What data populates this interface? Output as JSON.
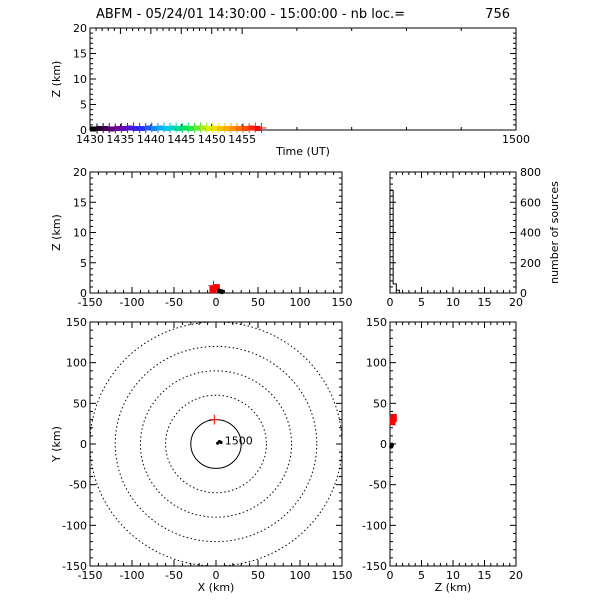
{
  "title": {
    "text": "ABFM - 05/24/01 14:30:00 - 15:00:00 - nb loc.=",
    "count": "756"
  },
  "colors": {
    "axis": "#000000",
    "background": "#ffffff",
    "recent": "#ff0000",
    "first": "#000000"
  },
  "chart_data": [
    {
      "id": "time-height",
      "type": "scatter",
      "xlabel": "Time (UT)",
      "ylabel": "Z (km)",
      "xlim": [
        1430,
        1500
      ],
      "ylim": [
        0,
        20
      ],
      "xticks": [
        "1430",
        "1435",
        "1440",
        "1445",
        "1450",
        "1455",
        "1500"
      ],
      "yticks": [
        "0",
        "5",
        "10",
        "15",
        "20"
      ],
      "colormap": "rainbow (black to red over time)",
      "points": [
        {
          "x": 1430.5,
          "y": 0.1
        },
        {
          "x": 1431.5,
          "y": 0.2
        },
        {
          "x": 1432.5,
          "y": 0.2
        },
        {
          "x": 1433.5,
          "y": 0.1
        },
        {
          "x": 1434.5,
          "y": 0.2
        },
        {
          "x": 1435.5,
          "y": 0.2
        },
        {
          "x": 1436.5,
          "y": 0.3
        },
        {
          "x": 1437.5,
          "y": 0.2
        },
        {
          "x": 1438.5,
          "y": 0.2
        },
        {
          "x": 1439.5,
          "y": 0.3
        },
        {
          "x": 1440.5,
          "y": 0.2
        },
        {
          "x": 1441.5,
          "y": 0.3
        },
        {
          "x": 1442.5,
          "y": 0.2
        },
        {
          "x": 1443.5,
          "y": 0.3
        },
        {
          "x": 1444.5,
          "y": 0.2
        },
        {
          "x": 1445.5,
          "y": 0.3
        },
        {
          "x": 1446.5,
          "y": 0.2
        },
        {
          "x": 1447.5,
          "y": 0.3
        },
        {
          "x": 1448.5,
          "y": 0.3
        },
        {
          "x": 1449.5,
          "y": 0.2
        },
        {
          "x": 1450.5,
          "y": 0.2
        },
        {
          "x": 1451.5,
          "y": 0.2
        },
        {
          "x": 1452.5,
          "y": 0.2
        },
        {
          "x": 1453.5,
          "y": 0.2
        },
        {
          "x": 1454.5,
          "y": 0.2
        },
        {
          "x": 1455.5,
          "y": 0.2
        },
        {
          "x": 1456.5,
          "y": 0.3
        },
        {
          "x": 1457.5,
          "y": 0.2
        }
      ]
    },
    {
      "id": "x-height",
      "type": "scatter",
      "xlabel": "",
      "ylabel": "Z (km)",
      "xlim": [
        -150,
        150
      ],
      "ylim": [
        0,
        20
      ],
      "xticks": [
        "-150",
        "-100",
        "-50",
        "0",
        "50",
        "100",
        "150"
      ],
      "yticks": [
        "0",
        "5",
        "10",
        "15",
        "20"
      ],
      "points": [
        {
          "x": -3,
          "y": 0.5,
          "c": "#ff0000"
        },
        {
          "x": 1,
          "y": 0.8,
          "c": "#ff0000"
        },
        {
          "x": 4,
          "y": 0.3,
          "c": "#000000"
        },
        {
          "x": 7,
          "y": 0.2,
          "c": "#000000"
        }
      ]
    },
    {
      "id": "height-histogram",
      "type": "bar",
      "xlabel": "",
      "ylabel": "number of sources",
      "ylabel_side": "right",
      "xlim": [
        0,
        20
      ],
      "ylim": [
        0,
        800
      ],
      "xticks": [
        "0",
        "5",
        "10",
        "15",
        "20"
      ],
      "yticks": [
        "0",
        "200",
        "400",
        "600",
        "800"
      ],
      "bin_width": 0.5,
      "values": [
        678,
        60,
        18,
        0,
        0,
        0,
        0,
        0,
        0,
        0,
        0,
        0,
        0,
        0,
        0,
        0,
        0,
        0,
        0,
        0,
        0,
        0,
        0,
        0,
        0,
        0,
        0,
        0,
        0,
        0,
        0,
        0,
        0,
        0,
        0,
        0,
        0,
        0,
        0,
        0
      ]
    },
    {
      "id": "plan-view",
      "type": "scatter",
      "xlabel": "X (km)",
      "ylabel": "Y (km)",
      "xlim": [
        -150,
        150
      ],
      "ylim": [
        -150,
        150
      ],
      "xticks": [
        "-150",
        "-100",
        "-50",
        "0",
        "50",
        "100",
        "150"
      ],
      "yticks": [
        "-150",
        "-100",
        "-50",
        "0",
        "50",
        "100",
        "150"
      ],
      "range_rings_km": [
        30,
        60,
        90,
        120,
        150
      ],
      "station_label": "1500",
      "station": {
        "x": 8,
        "y": 2
      },
      "points": [
        {
          "x": -2,
          "y": 30,
          "c": "#ff0000"
        },
        {
          "x": 2,
          "y": 1,
          "c": "#000000"
        },
        {
          "x": 4,
          "y": 3,
          "c": "#000000"
        },
        {
          "x": 6,
          "y": 2,
          "c": "#000000"
        }
      ]
    },
    {
      "id": "height-y",
      "type": "scatter",
      "xlabel": "Z (km)",
      "ylabel": "",
      "xlim": [
        0,
        20
      ],
      "ylim": [
        -150,
        150
      ],
      "xticks": [
        "0",
        "5",
        "10",
        "15",
        "20"
      ],
      "yticks": [
        "-150",
        "-100",
        "-50",
        "0",
        "50",
        "100",
        "150"
      ],
      "points": [
        {
          "x": 0.4,
          "y": 28,
          "c": "#ff0000"
        },
        {
          "x": 0.6,
          "y": 32,
          "c": "#ff0000"
        },
        {
          "x": 0.3,
          "y": -1,
          "c": "#000000"
        },
        {
          "x": 0.2,
          "y": -3,
          "c": "#000000"
        }
      ]
    }
  ]
}
